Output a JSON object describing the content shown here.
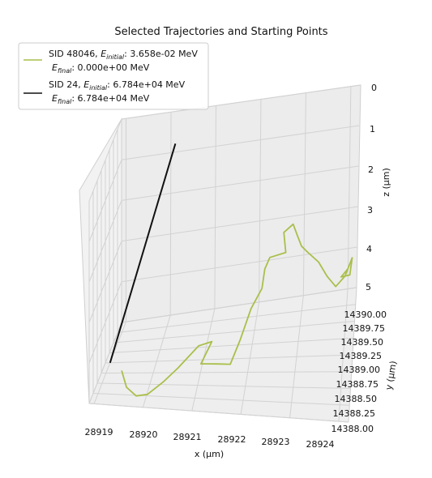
{
  "chart_data": {
    "type": "line",
    "title": "Selected Trajectories and Starting Points",
    "xlabel": "x (µm)",
    "ylabel": "y (µm)",
    "zlabel": "z (µm)",
    "x_ticks": [
      "28919",
      "28920",
      "28921",
      "28922",
      "28923",
      "28924"
    ],
    "y_ticks": [
      "14388.00",
      "14388.25",
      "14388.50",
      "14388.75",
      "14389.00",
      "14389.25",
      "14389.50",
      "14389.75",
      "14390.00"
    ],
    "z_ticks": [
      "0",
      "1",
      "2",
      "3",
      "4",
      "5"
    ],
    "xlim": [
      28918.9,
      28924.2
    ],
    "ylim": [
      14388.0,
      14390.0
    ],
    "zlim": [
      5,
      0
    ],
    "grid": true,
    "legend_position": "top-left",
    "series": [
      {
        "name": "SID 48046",
        "label_prefix": "SID 48046, ",
        "e_initial_symbol": "E",
        "e_initial_sub": "initial",
        "e_initial_value": ": 3.658e-02 MeV",
        "e_final_symbol": "E",
        "e_final_sub": "final",
        "e_final_value": ": 0.000e+00 MeV",
        "color": "#a9bf4b",
        "points": [
          [
            28919.25,
            14389.0,
            5.2
          ],
          [
            28919.45,
            14388.7,
            5.3
          ],
          [
            28919.7,
            14388.55,
            5.35
          ],
          [
            28919.95,
            14388.5,
            5.25
          ],
          [
            28920.25,
            14388.65,
            5.1
          ],
          [
            28920.5,
            14388.85,
            5.0
          ],
          [
            28920.85,
            14389.2,
            4.9
          ],
          [
            28921.1,
            14389.35,
            5.0
          ],
          [
            28920.95,
            14389.0,
            5.1
          ],
          [
            28921.3,
            14388.95,
            5.05
          ],
          [
            28921.6,
            14388.9,
            5.0
          ],
          [
            28921.75,
            14389.2,
            4.8
          ],
          [
            28921.9,
            14389.6,
            4.6
          ],
          [
            28922.1,
            14389.8,
            4.4
          ],
          [
            28922.15,
            14389.85,
            4.0
          ],
          [
            28922.25,
            14389.9,
            3.8
          ],
          [
            28922.6,
            14389.95,
            3.8
          ],
          [
            28922.55,
            14389.95,
            3.3
          ],
          [
            28922.75,
            14390.0,
            3.2
          ],
          [
            28922.85,
            14390.0,
            3.5
          ],
          [
            28922.95,
            14389.95,
            3.7
          ],
          [
            28923.1,
            14389.9,
            3.8
          ],
          [
            28923.35,
            14389.85,
            4.0
          ],
          [
            28923.55,
            14389.8,
            4.3
          ],
          [
            28923.75,
            14389.75,
            4.5
          ],
          [
            28923.95,
            14389.8,
            4.35
          ],
          [
            28924.1,
            14389.85,
            4.0
          ],
          [
            28924.05,
            14389.9,
            4.5
          ],
          [
            28923.85,
            14389.95,
            4.6
          ],
          [
            28924.0,
            14390.0,
            4.5
          ]
        ]
      },
      {
        "name": "SID 24",
        "label_prefix": "SID 24, ",
        "e_initial_symbol": "E",
        "e_initial_sub": "initial",
        "e_initial_value": ": 6.784e+04 MeV",
        "e_final_symbol": "E",
        "e_final_sub": "final",
        "e_final_value": ": 6.784e+04 MeV",
        "color": "#111111",
        "points": [
          [
            28919.0,
            14389.0,
            5.0
          ],
          [
            28920.3,
            14389.3,
            0.0
          ]
        ]
      }
    ]
  }
}
